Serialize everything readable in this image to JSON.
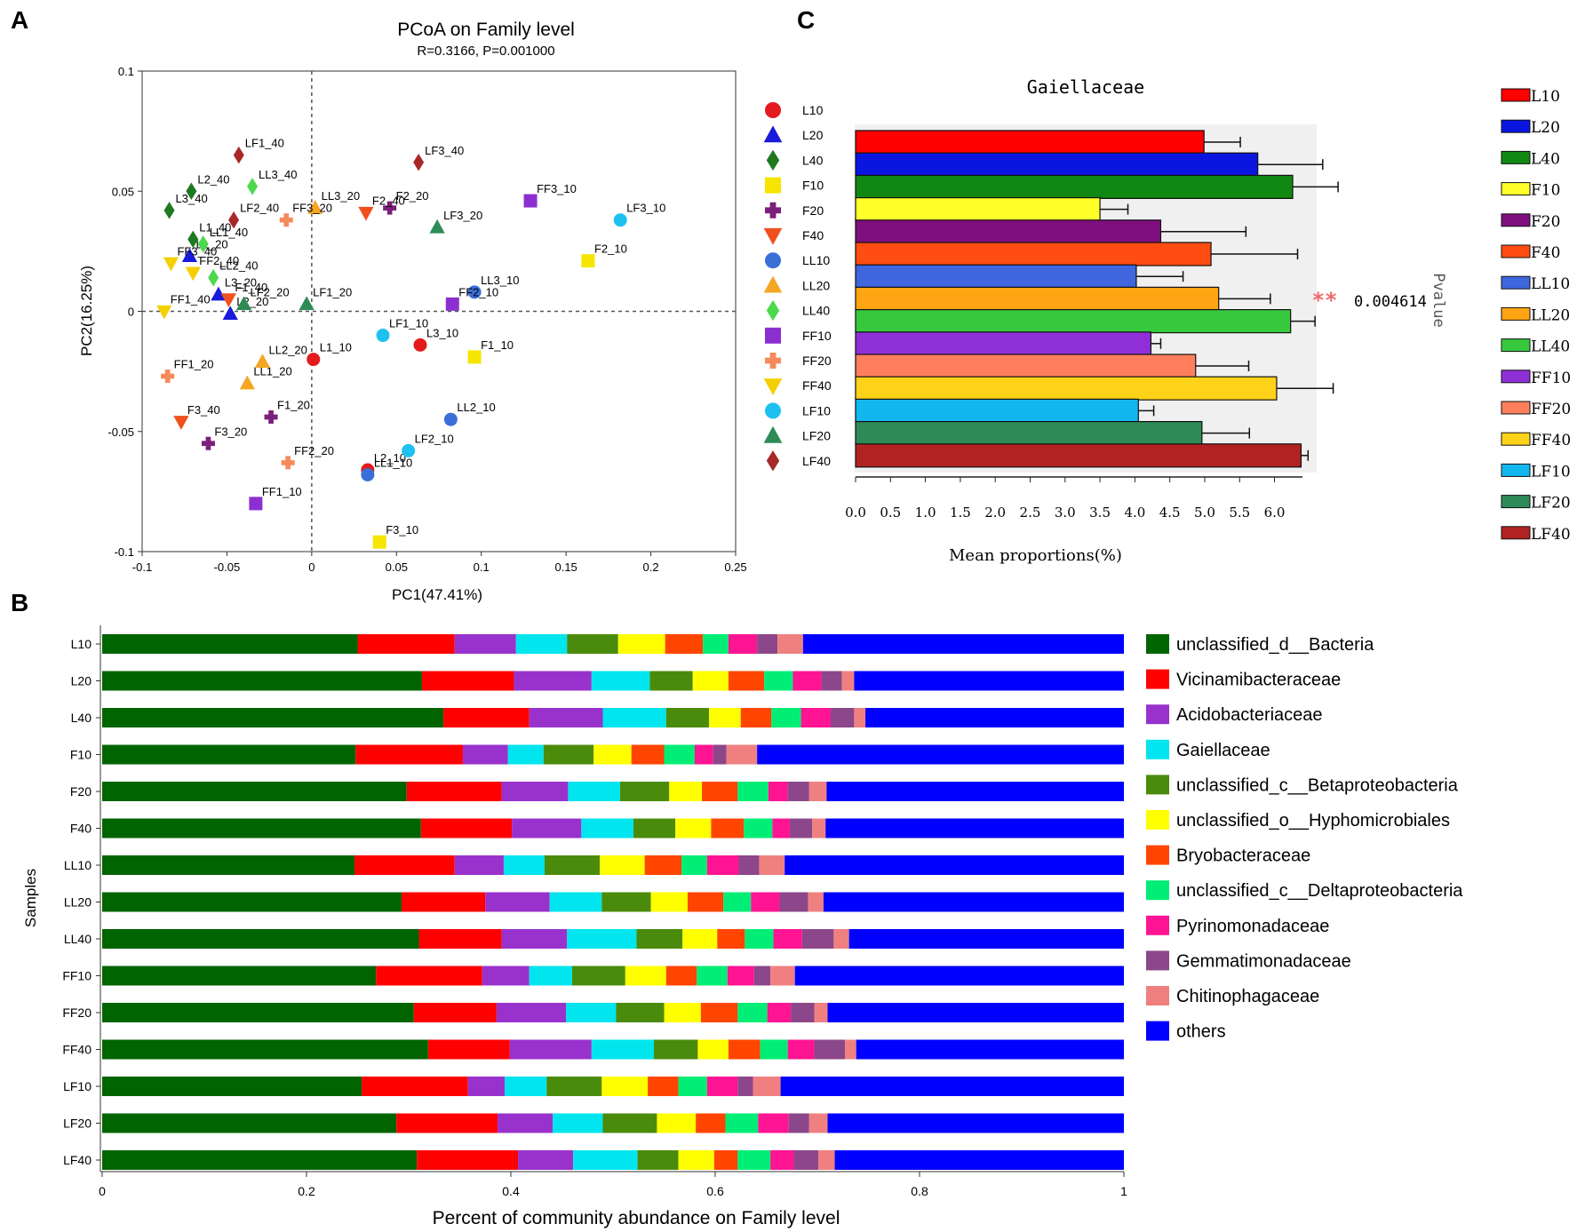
{
  "panel_labels": {
    "a": "A",
    "b": "B",
    "c": "C"
  },
  "chart_data": [
    {
      "type": "scatter",
      "title": "PCoA on Family level",
      "subtitle": "R=0.3166, P=0.001000",
      "xlabel": "PC1(47.41%)",
      "ylabel": "PC2(16.25%)",
      "xlim": [
        -0.1,
        0.25
      ],
      "ylim": [
        -0.1,
        0.1
      ],
      "xticks": [
        -0.1,
        -0.05,
        0,
        0.05,
        0.1,
        0.15,
        0.2,
        0.25
      ],
      "xtick_labels": [
        "-0.1",
        "-0.05",
        "0",
        "0.05",
        "0.1",
        "0.15",
        "0.2",
        "0.25"
      ],
      "yticks": [
        -0.1,
        -0.05,
        0,
        0.05,
        0.1
      ],
      "ytick_labels": [
        "-0.1",
        "-0.05",
        "0",
        "0.05",
        "0.1"
      ],
      "groups": [
        {
          "name": "L10",
          "color": "#e41a1c",
          "marker": "circle"
        },
        {
          "name": "L20",
          "color": "#1a1adb",
          "marker": "triangle-up"
        },
        {
          "name": "L40",
          "color": "#1f7a1f",
          "marker": "diamond"
        },
        {
          "name": "F10",
          "color": "#f5e500",
          "marker": "square"
        },
        {
          "name": "F20",
          "color": "#7b1f7b",
          "marker": "plus"
        },
        {
          "name": "F40",
          "color": "#f0501e",
          "marker": "triangle-down"
        },
        {
          "name": "LL10",
          "color": "#3a6fd8",
          "marker": "circle"
        },
        {
          "name": "LL20",
          "color": "#f5a623",
          "marker": "triangle-up"
        },
        {
          "name": "LL40",
          "color": "#4cd94c",
          "marker": "diamond"
        },
        {
          "name": "FF10",
          "color": "#8b2fd1",
          "marker": "square"
        },
        {
          "name": "FF20",
          "color": "#f58a5c",
          "marker": "plus"
        },
        {
          "name": "FF40",
          "color": "#f5d000",
          "marker": "triangle-down"
        },
        {
          "name": "LF10",
          "color": "#1ec0f0",
          "marker": "circle"
        },
        {
          "name": "LF20",
          "color": "#2e8b57",
          "marker": "triangle-up"
        },
        {
          "name": "LF40",
          "color": "#a82828",
          "marker": "diamond"
        }
      ],
      "points": [
        {
          "label": "L1_10",
          "group": "L10",
          "x": 0.001,
          "y": -0.02
        },
        {
          "label": "L2_10",
          "group": "L10",
          "x": 0.033,
          "y": -0.066
        },
        {
          "label": "L3_10",
          "group": "L10",
          "x": 0.064,
          "y": -0.014
        },
        {
          "label": "L1_20",
          "group": "L20",
          "x": -0.072,
          "y": 0.023
        },
        {
          "label": "L3_20",
          "group": "L20",
          "x": -0.055,
          "y": 0.007
        },
        {
          "label": "L2_20",
          "group": "L20",
          "x": -0.048,
          "y": -0.001
        },
        {
          "label": "L1_40",
          "group": "L40",
          "x": -0.07,
          "y": 0.03
        },
        {
          "label": "L2_40",
          "group": "L40",
          "x": -0.071,
          "y": 0.05
        },
        {
          "label": "L3_40",
          "group": "L40",
          "x": -0.084,
          "y": 0.042
        },
        {
          "label": "F1_10",
          "group": "F10",
          "x": 0.096,
          "y": -0.019
        },
        {
          "label": "F2_10",
          "group": "F10",
          "x": 0.163,
          "y": 0.021
        },
        {
          "label": "F3_10",
          "group": "F10",
          "x": 0.04,
          "y": -0.096
        },
        {
          "label": "F1_20",
          "group": "F20",
          "x": -0.024,
          "y": -0.044
        },
        {
          "label": "F2_20",
          "group": "F20",
          "x": 0.046,
          "y": 0.043
        },
        {
          "label": "F3_20",
          "group": "F20",
          "x": -0.061,
          "y": -0.055
        },
        {
          "label": "F1_40",
          "group": "F40",
          "x": -0.049,
          "y": 0.005
        },
        {
          "label": "F2_40",
          "group": "F40",
          "x": 0.032,
          "y": 0.041
        },
        {
          "label": "F3_40",
          "group": "F40",
          "x": -0.077,
          "y": -0.046
        },
        {
          "label": "LL1_10",
          "group": "LL10",
          "x": 0.033,
          "y": -0.068
        },
        {
          "label": "LL2_10",
          "group": "LL10",
          "x": 0.082,
          "y": -0.045
        },
        {
          "label": "LL3_10",
          "group": "LL10",
          "x": 0.096,
          "y": 0.008
        },
        {
          "label": "LL1_20",
          "group": "LL20",
          "x": -0.038,
          "y": -0.03
        },
        {
          "label": "LL2_20",
          "group": "LL20",
          "x": -0.029,
          "y": -0.021
        },
        {
          "label": "LL3_20",
          "group": "LL20",
          "x": 0.002,
          "y": 0.043
        },
        {
          "label": "LL1_40",
          "group": "LL40",
          "x": -0.064,
          "y": 0.028
        },
        {
          "label": "LL2_40",
          "group": "LL40",
          "x": -0.058,
          "y": 0.014
        },
        {
          "label": "LL3_40",
          "group": "LL40",
          "x": -0.035,
          "y": 0.052
        },
        {
          "label": "FF1_10",
          "group": "FF10",
          "x": -0.033,
          "y": -0.08
        },
        {
          "label": "FF2_10",
          "group": "FF10",
          "x": 0.083,
          "y": 0.003
        },
        {
          "label": "FF3_10",
          "group": "FF10",
          "x": 0.129,
          "y": 0.046
        },
        {
          "label": "FF1_20",
          "group": "FF20",
          "x": -0.085,
          "y": -0.027
        },
        {
          "label": "FF2_20",
          "group": "FF20",
          "x": -0.014,
          "y": -0.063
        },
        {
          "label": "FF3_20",
          "group": "FF20",
          "x": -0.015,
          "y": 0.038
        },
        {
          "label": "FF1_40",
          "group": "FF40",
          "x": -0.087,
          "y": 0.0
        },
        {
          "label": "FF2_40",
          "group": "FF40",
          "x": -0.07,
          "y": 0.016
        },
        {
          "label": "FF3_40",
          "group": "FF40",
          "x": -0.083,
          "y": 0.02
        },
        {
          "label": "LF1_10",
          "group": "LF10",
          "x": 0.042,
          "y": -0.01
        },
        {
          "label": "LF2_10",
          "group": "LF10",
          "x": 0.057,
          "y": -0.058
        },
        {
          "label": "LF3_10",
          "group": "LF10",
          "x": 0.182,
          "y": 0.038
        },
        {
          "label": "LF1_20",
          "group": "LF20",
          "x": -0.003,
          "y": 0.003
        },
        {
          "label": "LF2_20",
          "group": "LF20",
          "x": -0.04,
          "y": 0.003
        },
        {
          "label": "LF3_20",
          "group": "LF20",
          "x": 0.074,
          "y": 0.035
        },
        {
          "label": "LF1_40",
          "group": "LF40",
          "x": -0.043,
          "y": 0.065
        },
        {
          "label": "LF2_40",
          "group": "LF40",
          "x": -0.046,
          "y": 0.038
        },
        {
          "label": "LF3_40",
          "group": "LF40",
          "x": 0.063,
          "y": 0.062
        }
      ]
    },
    {
      "type": "bar",
      "orientation": "horizontal",
      "title": "Gaiellaceae",
      "xlabel": "Mean proportions(%)",
      "xlim": [
        0,
        6.4
      ],
      "xtick_labels": [
        "0.0",
        "0.5",
        "1.0",
        "1.5",
        "2.0",
        "2.5",
        "3.0",
        "3.5",
        "4.0",
        "4.5",
        "5.0",
        "5.5",
        "6.0"
      ],
      "side_label": "Pvalue",
      "significance": "**",
      "pvalue_text": "0.004614",
      "categories": [
        "L10",
        "L20",
        "L40",
        "F10",
        "F20",
        "F40",
        "LL10",
        "LL20",
        "LL40",
        "FF10",
        "FF20",
        "FF40",
        "LF10",
        "LF20",
        "LF40"
      ],
      "values": [
        4.99,
        5.76,
        6.26,
        3.5,
        4.37,
        5.09,
        4.02,
        5.2,
        6.23,
        4.23,
        4.87,
        6.03,
        4.05,
        4.96,
        6.38
      ],
      "errors": [
        0.52,
        0.93,
        0.65,
        0.4,
        1.22,
        1.24,
        0.67,
        0.74,
        0.35,
        0.14,
        0.76,
        0.81,
        0.22,
        0.68,
        0.1
      ],
      "colors": [
        "#ff0000",
        "#0a16e0",
        "#118811",
        "#ffff2a",
        "#7f0f7f",
        "#ff4d12",
        "#3f66dc",
        "#ffa412",
        "#36c93e",
        "#8f2fd8",
        "#ff7f5c",
        "#ffd21a",
        "#12b7f0",
        "#2e8b57",
        "#b22222"
      ],
      "legend": [
        "L10",
        "L20",
        "L40",
        "F10",
        "F20",
        "F40",
        "LL10",
        "LL20",
        "LL40",
        "FF10",
        "FF20",
        "FF40",
        "LF10",
        "LF20",
        "LF40"
      ]
    },
    {
      "type": "bar",
      "orientation": "horizontal",
      "stacked": true,
      "xlabel": "Percent of community abundance on Family level",
      "ylabel": "Samples",
      "xlim": [
        0,
        1
      ],
      "xtick_labels": [
        "0",
        "0.2",
        "0.4",
        "0.6",
        "0.8",
        "1"
      ],
      "categories": [
        "L10",
        "L20",
        "L40",
        "F10",
        "F20",
        "F40",
        "LL10",
        "LL20",
        "LL40",
        "FF10",
        "FF20",
        "FF40",
        "LF10",
        "LF20",
        "LF40"
      ],
      "series": [
        {
          "name": "unclassified_d__Bacteria",
          "color": "#006400",
          "values": [
            0.25,
            0.313,
            0.334,
            0.248,
            0.298,
            0.312,
            0.247,
            0.293,
            0.31,
            0.268,
            0.305,
            0.319,
            0.254,
            0.288,
            0.308
          ]
        },
        {
          "name": "Vicinamibacteraceae",
          "color": "#ff0000",
          "values": [
            0.095,
            0.09,
            0.084,
            0.105,
            0.093,
            0.089,
            0.098,
            0.082,
            0.081,
            0.104,
            0.081,
            0.08,
            0.104,
            0.099,
            0.099
          ]
        },
        {
          "name": "Acidobacteriaceae",
          "color": "#9932cc",
          "values": [
            0.06,
            0.076,
            0.072,
            0.044,
            0.065,
            0.068,
            0.048,
            0.063,
            0.064,
            0.046,
            0.068,
            0.08,
            0.036,
            0.054,
            0.054
          ]
        },
        {
          "name": "Gaiellaceae",
          "color": "#00e5ee",
          "values": [
            0.05,
            0.057,
            0.062,
            0.035,
            0.051,
            0.051,
            0.04,
            0.051,
            0.068,
            0.042,
            0.049,
            0.061,
            0.041,
            0.049,
            0.063
          ]
        },
        {
          "name": "unclassified_c__Betaproteobacteria",
          "color": "#4b8b0b",
          "values": [
            0.05,
            0.042,
            0.042,
            0.049,
            0.048,
            0.041,
            0.054,
            0.048,
            0.045,
            0.052,
            0.047,
            0.043,
            0.054,
            0.053,
            0.04
          ]
        },
        {
          "name": "unclassified_o__Hyphomicrobiales",
          "color": "#ffff00",
          "values": [
            0.046,
            0.035,
            0.031,
            0.037,
            0.032,
            0.035,
            0.044,
            0.036,
            0.034,
            0.04,
            0.036,
            0.03,
            0.045,
            0.038,
            0.035
          ]
        },
        {
          "name": "Bryobacteraceae",
          "color": "#ff4500",
          "values": [
            0.037,
            0.035,
            0.03,
            0.032,
            0.035,
            0.032,
            0.036,
            0.035,
            0.027,
            0.03,
            0.036,
            0.031,
            0.03,
            0.029,
            0.023
          ]
        },
        {
          "name": "unclassified_c__Deltaproteobacteria",
          "color": "#00ee76",
          "values": [
            0.025,
            0.028,
            0.029,
            0.03,
            0.03,
            0.028,
            0.025,
            0.027,
            0.028,
            0.03,
            0.029,
            0.027,
            0.028,
            0.032,
            0.032
          ]
        },
        {
          "name": "Pyrinomonadaceae",
          "color": "#ff1493",
          "values": [
            0.028,
            0.028,
            0.029,
            0.018,
            0.019,
            0.017,
            0.031,
            0.028,
            0.028,
            0.026,
            0.023,
            0.026,
            0.03,
            0.03,
            0.023
          ]
        },
        {
          "name": "Gemmatimonadaceae",
          "color": "#8b4789",
          "values": [
            0.02,
            0.02,
            0.023,
            0.013,
            0.021,
            0.022,
            0.02,
            0.028,
            0.031,
            0.016,
            0.023,
            0.03,
            0.015,
            0.02,
            0.024
          ]
        },
        {
          "name": "Chitinophagaceae",
          "color": "#f08080",
          "values": [
            0.025,
            0.012,
            0.011,
            0.03,
            0.017,
            0.013,
            0.025,
            0.015,
            0.015,
            0.024,
            0.013,
            0.011,
            0.027,
            0.018,
            0.016
          ]
        },
        {
          "name": "others",
          "color": "#0000ff",
          "values": [
            0.314,
            0.264,
            0.253,
            0.359,
            0.301,
            0.292,
            0.332,
            0.294,
            0.269,
            0.322,
            0.29,
            0.262,
            0.336,
            0.29,
            0.283
          ]
        }
      ]
    }
  ]
}
